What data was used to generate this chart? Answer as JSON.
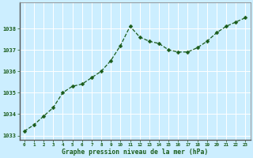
{
  "x": [
    0,
    1,
    2,
    3,
    4,
    5,
    6,
    7,
    8,
    9,
    10,
    11,
    12,
    13,
    14,
    15,
    16,
    17,
    18,
    19,
    20,
    21,
    22,
    23
  ],
  "y": [
    1033.2,
    1033.5,
    1033.9,
    1034.3,
    1035.0,
    1035.3,
    1035.4,
    1035.7,
    1036.0,
    1036.5,
    1037.2,
    1038.1,
    1037.6,
    1037.4,
    1037.3,
    1037.0,
    1036.9,
    1036.9,
    1037.1,
    1037.4,
    1037.8,
    1038.1,
    1038.3,
    1038.5
  ],
  "line_color": "#1a5c1a",
  "marker": "D",
  "marker_size": 2.5,
  "bg_color": "#cceeff",
  "grid_color": "#ffffff",
  "xlabel": "Graphe pression niveau de la mer (hPa)",
  "xlabel_color": "#1a5c1a",
  "tick_color": "#1a5c1a",
  "label_color": "#1a5c1a",
  "ylim": [
    1032.8,
    1039.2
  ],
  "xlim": [
    -0.5,
    23.5
  ],
  "yticks": [
    1033,
    1034,
    1035,
    1036,
    1037,
    1038
  ],
  "xticks": [
    0,
    1,
    2,
    3,
    4,
    5,
    6,
    7,
    8,
    9,
    10,
    11,
    12,
    13,
    14,
    15,
    16,
    17,
    18,
    19,
    20,
    21,
    22,
    23
  ],
  "spine_color": "#888888",
  "left_spine_color": "#555555"
}
